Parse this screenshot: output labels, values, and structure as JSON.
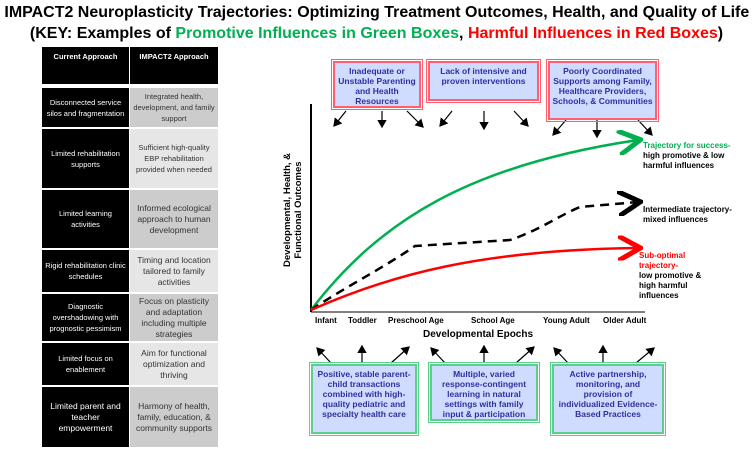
{
  "title": {
    "line1": "IMPACT2 Neuroplasticity Trajectories: Optimizing Treatment Outcomes, Health, and Quality of Life",
    "line2_pre": "(KEY: Examples of ",
    "line2_green": "Promotive Influences in Green Boxes",
    "line2_mid": ", ",
    "line2_red": "Harmful Influences in Red Boxes",
    "line2_post": ")"
  },
  "table": {
    "headers": [
      "Current Approach",
      "IMPACT2 Approach"
    ],
    "rows": [
      {
        "current": "Disconnected service silos and fragmentation",
        "impact2": "Integrated health, development, and family support"
      },
      {
        "current": "Limited rehabilitation supports",
        "impact2": "Sufficient high-quality EBP rehabilitation provided when needed"
      },
      {
        "current": "Limited learning activities",
        "impact2": "Informed ecological approach to human development"
      },
      {
        "current": "Rigid rehabilitation clinic schedules",
        "impact2": "Timing and location tailored to family activities"
      },
      {
        "current": "Diagnostic overshadowing with prognostic pessimism",
        "impact2": "Focus on plasticity and adaptation including multiple strategies"
      },
      {
        "current": "Limited focus on enablement",
        "impact2": "Aim for functional optimization and thriving"
      },
      {
        "current": "Limited parent and teacher empowerment",
        "impact2": "Harmony of health, family, education, & community supports"
      }
    ]
  },
  "harmful": [
    "Inadequate or Unstable Parenting and Health Resources",
    "Lack of intensive and proven interventions",
    "Poorly Coordinated Supports among Family, Healthcare Providers, Schools, & Communities"
  ],
  "promotive": [
    "Positive, stable parent-child transactions combined with high-quality pediatric and specialty health care",
    "Multiple, varied response-contingent learning in natural settings with family input & participation",
    "Active partnership, monitoring, and provision of individualized Evidence-Based Practices"
  ],
  "axes": {
    "y": "Developmental, Health, & Functional Outcomes",
    "x": "Developmental Epochs",
    "epochs": [
      "Infant",
      "Toddler",
      "Preschool Age",
      "School Age",
      "Young Adult",
      "Older Adult"
    ]
  },
  "trajectories": {
    "success": {
      "title": "Trajectory for success-",
      "desc": "high promotive & low harmful influences",
      "color": "#00b050"
    },
    "intermediate": {
      "title": "Intermediate trajectory-",
      "desc": "mixed influences",
      "color": "#000000"
    },
    "suboptimal": {
      "title": "Sub-optimal trajectory-",
      "desc": "low promotive & high harmful influences",
      "color": "#ff0000"
    }
  }
}
